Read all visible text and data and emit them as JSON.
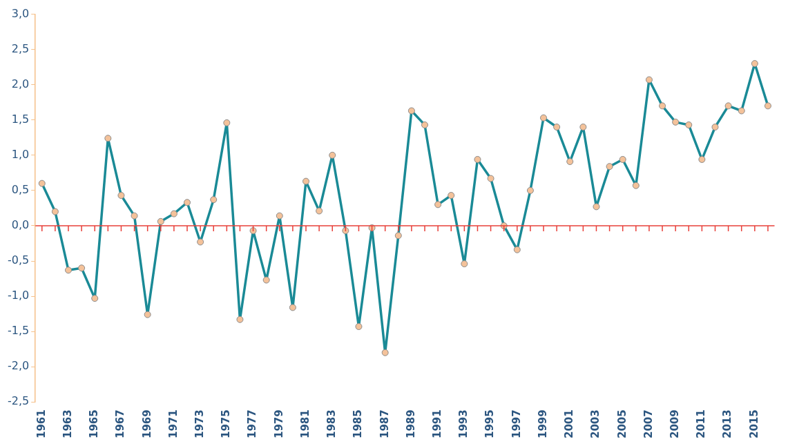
{
  "chart_data": {
    "type": "line",
    "categories": [
      "1961",
      null,
      "1963",
      null,
      "1965",
      null,
      "1967",
      null,
      "1969",
      null,
      "1971",
      null,
      "1973",
      null,
      "1975",
      null,
      "1977",
      null,
      "1979",
      null,
      "1981",
      null,
      "1983",
      null,
      "1985",
      null,
      "1987",
      null,
      "1989",
      null,
      "1991",
      null,
      "1993",
      null,
      "1995",
      null,
      "1997",
      null,
      "1999",
      null,
      "2001",
      null,
      "2003",
      null,
      "2005",
      null,
      "2007",
      null,
      "2009",
      null,
      "2011",
      null,
      "2013",
      null,
      "2015",
      null
    ],
    "series": [
      {
        "color": "#1a8a96",
        "values": [
          0.6,
          0.2,
          -0.63,
          -0.6,
          -1.03,
          1.24,
          0.43,
          0.14,
          -1.26,
          0.06,
          0.17,
          0.33,
          -0.23,
          0.37,
          1.46,
          -1.33,
          -0.07,
          -0.77,
          0.14,
          -1.16,
          0.63,
          0.21,
          1.0,
          -0.07,
          -1.43,
          -0.03,
          -1.8,
          -0.14,
          1.63,
          1.43,
          0.3,
          0.43,
          -0.54,
          0.94,
          0.67,
          0.0,
          -0.34,
          0.5,
          1.53,
          1.4,
          0.91,
          1.4,
          0.27,
          0.84,
          0.94,
          0.57,
          2.07,
          1.7,
          1.47,
          1.43,
          0.94,
          1.4,
          1.7,
          1.63,
          2.3,
          1.7
        ]
      }
    ],
    "ylim": [
      -2.5,
      3.0
    ],
    "yticks": [
      {
        "value": -2.5,
        "label": "-2,5"
      },
      {
        "value": -2.0,
        "label": "-2,0"
      },
      {
        "value": -1.5,
        "label": "-1,5"
      },
      {
        "value": -1.0,
        "label": "-1,0"
      },
      {
        "value": -0.5,
        "label": "-0,5"
      },
      {
        "value": 0,
        "label": "0,0"
      },
      {
        "value": 0.5,
        "label": "0,5"
      },
      {
        "value": 1.0,
        "label": "1,0"
      },
      {
        "value": 1.5,
        "label": "1,5"
      },
      {
        "value": 2.0,
        "label": "2,0"
      },
      {
        "value": 2.5,
        "label": "2,5"
      },
      {
        "value": 3.0,
        "label": "3,0"
      }
    ],
    "ref_lines": [
      {
        "axis": "y",
        "value": 0,
        "color": "#e8403a"
      }
    ],
    "marker": "circle",
    "line_style": "solid",
    "grid": false,
    "legend": false
  }
}
